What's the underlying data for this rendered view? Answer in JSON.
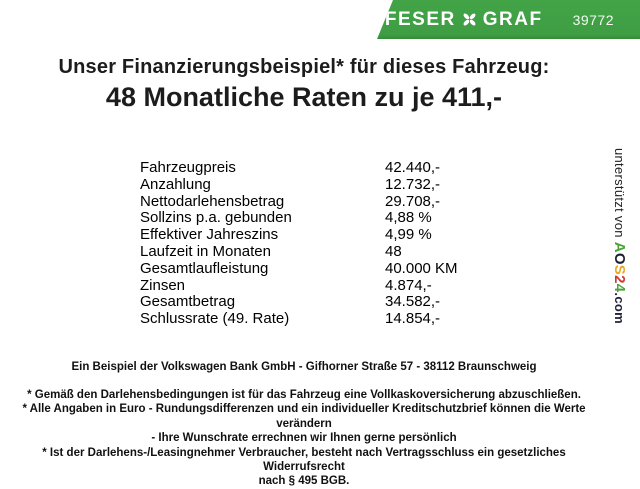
{
  "banner": {
    "bg_color": "#3f9e43",
    "text_color": "#ffffff",
    "brand_left": "FESER",
    "brand_right": "GRAF",
    "brand_icon": "clover-x-icon",
    "number": "39772"
  },
  "title": {
    "line1": "Unser Finanzierungsbeispiel* für dieses Fahrzeug:",
    "line2": "48 Monatliche Raten zu je 411,-"
  },
  "financing_table": {
    "rows": [
      {
        "label": "Fahrzeugpreis",
        "value": "42.440,-"
      },
      {
        "label": "Anzahlung",
        "value": "12.732,-"
      },
      {
        "label": "Nettodarlehensbetrag",
        "value": "29.708,-"
      },
      {
        "label": "Sollzins p.a. gebunden",
        "value": "4,88 %"
      },
      {
        "label": "Effektiver Jahreszins",
        "value": "4,99 %"
      },
      {
        "label": "Laufzeit in Monaten",
        "value": "48"
      },
      {
        "label": "Gesamtlaufleistung",
        "value": "40.000 KM"
      },
      {
        "label": "Zinsen",
        "value": "4.874,-"
      },
      {
        "label": "Gesamtbetrag",
        "value": "34.582,-"
      },
      {
        "label": "Schlussrate (49. Rate)",
        "value": "14.854,-"
      }
    ]
  },
  "bank_line": "Ein Beispiel der Volkswagen Bank GmbH - Gifhorner Straße 57 - 38112 Braunschweig",
  "disclaimer_lines": [
    "* Gemäß den Darlehensbedingungen ist für das Fahrzeug eine Vollkaskoversicherung abzuschließen.",
    "* Alle Angaben in Euro - Rundungsdifferenzen und ein individueller Kreditschutzbrief können die Werte verändern",
    "- Ihre Wunschrate errechnen wir Ihnen gerne persönlich",
    "* Ist der Darlehens-/Leasingnehmer Verbraucher, besteht nach Vertragsschluss ein gesetzliches Widerrufsrecht",
    "nach § 495 BGB."
  ],
  "sidebar": {
    "prefix": "unterstützt von ",
    "logo_letters": [
      {
        "ch": "A",
        "color": "#4da33b"
      },
      {
        "ch": "O",
        "color": "#1c1c30"
      },
      {
        "ch": "S",
        "color": "#eda723"
      },
      {
        "ch": "2",
        "color": "#d03a2f"
      },
      {
        "ch": "4",
        "color": "#4da33b"
      }
    ],
    "suffix": ".com"
  }
}
